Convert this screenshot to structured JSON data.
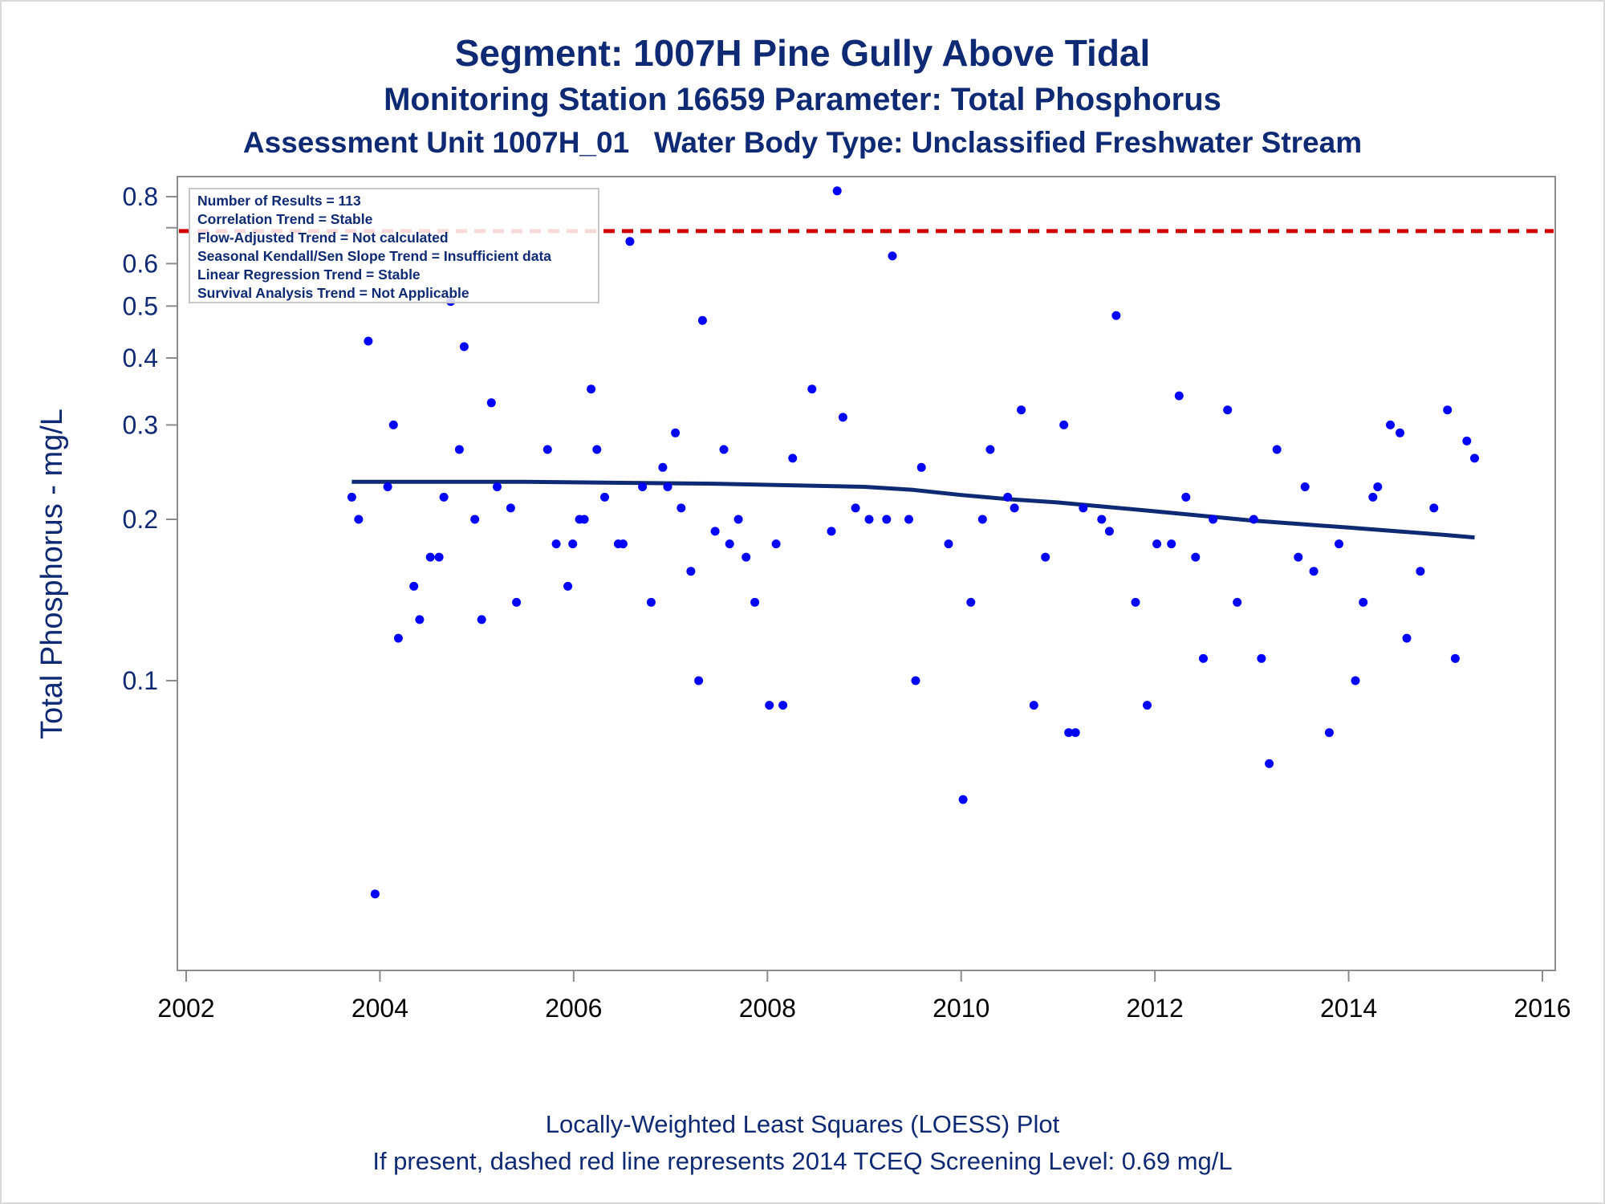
{
  "titles": {
    "line1": "Segment: 1007H  Pine Gully Above Tidal",
    "line2": "Monitoring Station 16659 Parameter: Total Phosphorus",
    "line3": "Assessment Unit 1007H_01   Water Body Type: Unclassified Freshwater Stream"
  },
  "footnotes": {
    "line1": "Locally-Weighted Least Squares (LOESS) Plot",
    "line2": "If present, dashed red line represents 2014 TCEQ Screening Level: 0.69 mg/L"
  },
  "stats_box": [
    "Number of Results = 113",
    "Correlation Trend = Stable",
    "Flow-Adjusted Trend = Not calculated",
    "Seasonal Kendall/Sen Slope Trend = Insufficient data",
    "Linear Regression Trend = Stable",
    "Survival Analysis Trend = Not Applicable"
  ],
  "colors": {
    "points": "#0000ff",
    "loess": "#0f2a74",
    "screening_line": "#d10000",
    "text": "#0f2a74"
  },
  "chart_data": {
    "type": "scatter",
    "ylabel": "Total Phosphorus - mg/L",
    "xlabel": "",
    "yscale": "log",
    "xlim": [
      2002,
      2016
    ],
    "ylim": [
      0.035,
      0.85
    ],
    "x_ticks": [
      2002,
      2004,
      2006,
      2008,
      2010,
      2012,
      2014,
      2016
    ],
    "y_ticks": [
      0.1,
      0.2,
      0.3,
      0.4,
      0.5,
      0.6,
      0.8
    ],
    "y_tick_labels": [
      "0.1",
      "0.2",
      "0.3",
      "0.4",
      "0.5",
      "0.6",
      "0.8"
    ],
    "reference_line": {
      "value": 0.69,
      "style": "dashed"
    },
    "series": [
      {
        "type": "scatter",
        "points": [
          [
            2003.71,
            0.22
          ],
          [
            2003.78,
            0.2
          ],
          [
            2003.88,
            0.43
          ],
          [
            2003.95,
            0.04
          ],
          [
            2004.08,
            0.23
          ],
          [
            2004.14,
            0.3
          ],
          [
            2004.19,
            0.12
          ],
          [
            2004.35,
            0.15
          ],
          [
            2004.41,
            0.13
          ],
          [
            2004.52,
            0.17
          ],
          [
            2004.61,
            0.17
          ],
          [
            2004.66,
            0.22
          ],
          [
            2004.73,
            0.51
          ],
          [
            2004.82,
            0.27
          ],
          [
            2004.87,
            0.42
          ],
          [
            2004.98,
            0.2
          ],
          [
            2005.05,
            0.13
          ],
          [
            2005.15,
            0.33
          ],
          [
            2005.21,
            0.23
          ],
          [
            2005.35,
            0.21
          ],
          [
            2005.41,
            0.14
          ],
          [
            2005.73,
            0.27
          ],
          [
            2005.82,
            0.18
          ],
          [
            2005.94,
            0.15
          ],
          [
            2005.99,
            0.18
          ],
          [
            2006.06,
            0.2
          ],
          [
            2006.11,
            0.2
          ],
          [
            2006.18,
            0.35
          ],
          [
            2006.24,
            0.27
          ],
          [
            2006.32,
            0.22
          ],
          [
            2006.46,
            0.18
          ],
          [
            2006.51,
            0.18
          ],
          [
            2006.58,
            0.66
          ],
          [
            2006.71,
            0.23
          ],
          [
            2006.8,
            0.14
          ],
          [
            2006.92,
            0.25
          ],
          [
            2006.97,
            0.23
          ],
          [
            2007.05,
            0.29
          ],
          [
            2007.11,
            0.21
          ],
          [
            2007.21,
            0.16
          ],
          [
            2007.29,
            0.1
          ],
          [
            2007.33,
            0.47
          ],
          [
            2007.46,
            0.19
          ],
          [
            2007.55,
            0.27
          ],
          [
            2007.61,
            0.18
          ],
          [
            2007.7,
            0.2
          ],
          [
            2007.78,
            0.17
          ],
          [
            2007.87,
            0.14
          ],
          [
            2008.02,
            0.09
          ],
          [
            2008.09,
            0.18
          ],
          [
            2008.16,
            0.09
          ],
          [
            2008.26,
            0.26
          ],
          [
            2008.46,
            0.35
          ],
          [
            2008.66,
            0.19
          ],
          [
            2008.72,
            0.82
          ],
          [
            2008.78,
            0.31
          ],
          [
            2008.91,
            0.21
          ],
          [
            2009.05,
            0.2
          ],
          [
            2009.23,
            0.2
          ],
          [
            2009.29,
            0.62
          ],
          [
            2009.46,
            0.2
          ],
          [
            2009.53,
            0.1
          ],
          [
            2009.59,
            0.25
          ],
          [
            2009.87,
            0.18
          ],
          [
            2010.02,
            0.06
          ],
          [
            2010.1,
            0.14
          ],
          [
            2010.22,
            0.2
          ],
          [
            2010.3,
            0.27
          ],
          [
            2010.48,
            0.22
          ],
          [
            2010.55,
            0.21
          ],
          [
            2010.62,
            0.32
          ],
          [
            2010.75,
            0.09
          ],
          [
            2010.87,
            0.17
          ],
          [
            2011.06,
            0.3
          ],
          [
            2011.11,
            0.08
          ],
          [
            2011.18,
            0.08
          ],
          [
            2011.26,
            0.21
          ],
          [
            2011.45,
            0.2
          ],
          [
            2011.53,
            0.19
          ],
          [
            2011.6,
            0.48
          ],
          [
            2011.8,
            0.14
          ],
          [
            2011.92,
            0.09
          ],
          [
            2012.02,
            0.18
          ],
          [
            2012.17,
            0.18
          ],
          [
            2012.25,
            0.34
          ],
          [
            2012.32,
            0.22
          ],
          [
            2012.42,
            0.17
          ],
          [
            2012.5,
            0.11
          ],
          [
            2012.6,
            0.2
          ],
          [
            2012.75,
            0.32
          ],
          [
            2012.85,
            0.14
          ],
          [
            2013.02,
            0.2
          ],
          [
            2013.1,
            0.11
          ],
          [
            2013.18,
            0.07
          ],
          [
            2013.26,
            0.27
          ],
          [
            2013.48,
            0.17
          ],
          [
            2013.55,
            0.23
          ],
          [
            2013.64,
            0.16
          ],
          [
            2013.8,
            0.08
          ],
          [
            2013.9,
            0.18
          ],
          [
            2014.07,
            0.1
          ],
          [
            2014.15,
            0.14
          ],
          [
            2014.25,
            0.22
          ],
          [
            2014.3,
            0.23
          ],
          [
            2014.43,
            0.3
          ],
          [
            2014.53,
            0.29
          ],
          [
            2014.6,
            0.12
          ],
          [
            2014.74,
            0.16
          ],
          [
            2014.88,
            0.21
          ],
          [
            2015.02,
            0.32
          ],
          [
            2015.1,
            0.11
          ],
          [
            2015.22,
            0.28
          ],
          [
            2015.3,
            0.26
          ]
        ]
      },
      {
        "type": "line",
        "name": "LOESS",
        "points": [
          [
            2003.71,
            0.235
          ],
          [
            2004.5,
            0.235
          ],
          [
            2005.5,
            0.235
          ],
          [
            2006.5,
            0.234
          ],
          [
            2007.5,
            0.233
          ],
          [
            2008.5,
            0.231
          ],
          [
            2009.0,
            0.23
          ],
          [
            2009.5,
            0.227
          ],
          [
            2010.0,
            0.222
          ],
          [
            2010.5,
            0.218
          ],
          [
            2011.0,
            0.215
          ],
          [
            2011.5,
            0.211
          ],
          [
            2012.0,
            0.207
          ],
          [
            2012.5,
            0.203
          ],
          [
            2013.0,
            0.199
          ],
          [
            2013.5,
            0.196
          ],
          [
            2014.0,
            0.193
          ],
          [
            2014.5,
            0.19
          ],
          [
            2015.0,
            0.187
          ],
          [
            2015.3,
            0.185
          ]
        ]
      }
    ]
  }
}
